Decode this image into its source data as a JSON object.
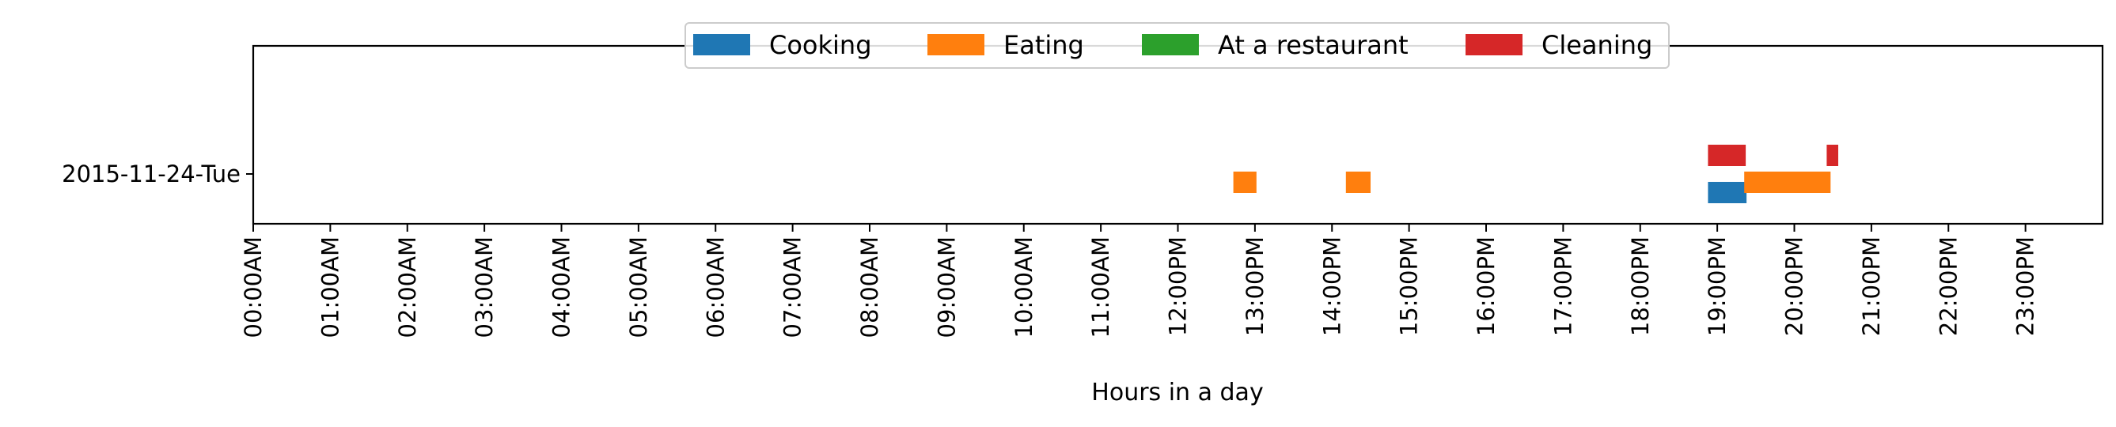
{
  "chart_data": {
    "type": "bar",
    "orientation": "horizontal-timeline",
    "title": "",
    "xlabel": "Hours in a day",
    "ylabel": "",
    "xlim": [
      0,
      24
    ],
    "x_ticks": [
      "00:00AM",
      "01:00AM",
      "02:00AM",
      "03:00AM",
      "04:00AM",
      "05:00AM",
      "06:00AM",
      "07:00AM",
      "08:00AM",
      "09:00AM",
      "10:00AM",
      "11:00AM",
      "12:00PM",
      "13:00PM",
      "14:00PM",
      "15:00PM",
      "16:00PM",
      "17:00PM",
      "18:00PM",
      "19:00PM",
      "20:00PM",
      "21:00PM",
      "22:00PM",
      "23:00PM"
    ],
    "categories": [
      "2015-11-24-Tue"
    ],
    "grid": false,
    "legend_position": "top-center",
    "series": [
      {
        "name": "Cooking",
        "color": "#1f77b4",
        "segments": [
          {
            "day": "2015-11-24-Tue",
            "start": 18.88,
            "end": 19.38
          }
        ]
      },
      {
        "name": "Eating",
        "color": "#ff7f0e",
        "segments": [
          {
            "day": "2015-11-24-Tue",
            "start": 12.72,
            "end": 13.02
          },
          {
            "day": "2015-11-24-Tue",
            "start": 14.18,
            "end": 14.5
          },
          {
            "day": "2015-11-24-Tue",
            "start": 19.35,
            "end": 20.47
          }
        ]
      },
      {
        "name": "At a restaurant",
        "color": "#2ca02c",
        "segments": []
      },
      {
        "name": "Cleaning",
        "color": "#d62728",
        "segments": [
          {
            "day": "2015-11-24-Tue",
            "start": 18.88,
            "end": 19.37
          },
          {
            "day": "2015-11-24-Tue",
            "start": 20.42,
            "end": 20.57
          }
        ]
      }
    ]
  }
}
